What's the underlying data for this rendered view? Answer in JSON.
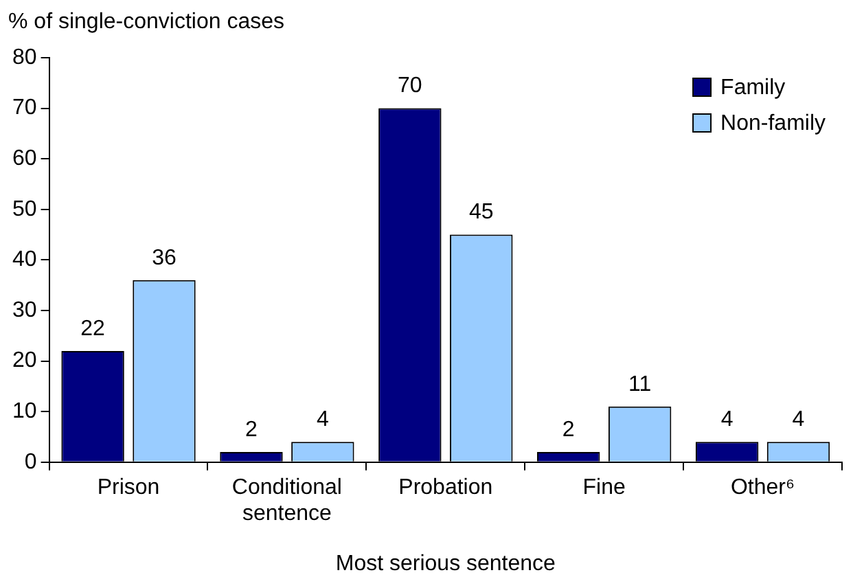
{
  "chart_data": {
    "type": "bar",
    "ylabel": "% of single-conviction cases",
    "xlabel": "Most serious sentence",
    "categories": [
      "Prison",
      "Conditional sentence",
      "Probation",
      "Fine",
      "Other⁶"
    ],
    "series": [
      {
        "name": "Family",
        "color": "#000080",
        "values": [
          22,
          2,
          70,
          2,
          4
        ]
      },
      {
        "name": "Non-family",
        "color": "#99ccff",
        "values": [
          36,
          4,
          45,
          11,
          4
        ]
      }
    ],
    "ylim": [
      0,
      80
    ],
    "yticks": [
      0,
      10,
      20,
      30,
      40,
      50,
      60,
      70,
      80
    ],
    "legend": "top right",
    "data_labels": true
  }
}
